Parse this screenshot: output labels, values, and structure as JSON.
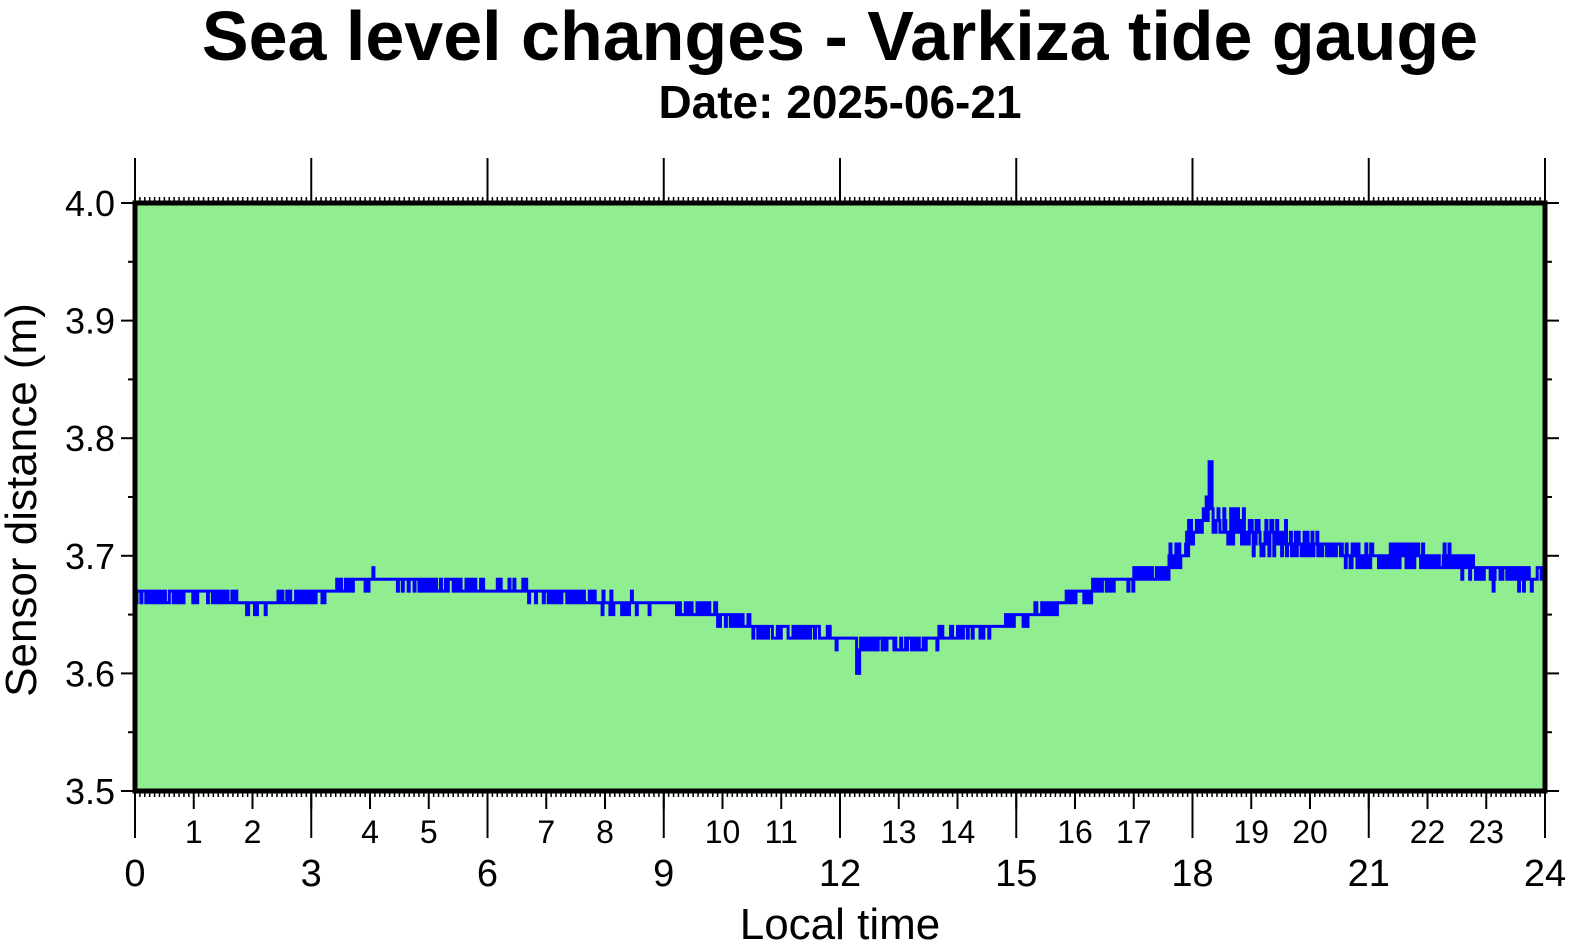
{
  "chart_data": {
    "type": "line",
    "title": "Sea level changes - Varkiza tide gauge",
    "subtitle": "Date: 2025-06-21",
    "xlabel": "Local time",
    "ylabel": "Sensor distance (m)",
    "xlim": [
      0,
      24
    ],
    "ylim": [
      3.5,
      4.0
    ],
    "x_major_ticks": [
      "0",
      "3",
      "6",
      "9",
      "12",
      "15",
      "18",
      "21",
      "24"
    ],
    "x_minor_ticks": [
      "1",
      "2",
      "4",
      "5",
      "7",
      "8",
      "10",
      "11",
      "13",
      "14",
      "16",
      "17",
      "19",
      "20",
      "22",
      "23"
    ],
    "y_ticks": [
      "3.5",
      "3.6",
      "3.7",
      "3.8",
      "3.9",
      "4.0"
    ],
    "grid": false,
    "colors": {
      "plot_background": "#90ee90",
      "line": "#0000ff",
      "frame": "#000000"
    },
    "series": [
      {
        "x": [
          0,
          0.5,
          1,
          1.5,
          2,
          2.5,
          3,
          3.5,
          4,
          4.5,
          5,
          5.5,
          6,
          6.5,
          7,
          7.5,
          8,
          8.5,
          9,
          9.5,
          10,
          10.5,
          11,
          11.5,
          12,
          12.5,
          13,
          13.5,
          14,
          14.5,
          15,
          15.5,
          16,
          16.5,
          17,
          17.5,
          18,
          18.25,
          18.5,
          19,
          19.5,
          20,
          20.5,
          21,
          21.5,
          22,
          22.5,
          23,
          23.5,
          24
        ],
        "y": [
          3.665,
          3.665,
          3.67,
          3.665,
          3.655,
          3.665,
          3.665,
          3.675,
          3.68,
          3.68,
          3.675,
          3.672,
          3.672,
          3.672,
          3.665,
          3.665,
          3.66,
          3.66,
          3.66,
          3.655,
          3.648,
          3.64,
          3.635,
          3.635,
          3.63,
          3.628,
          3.625,
          3.628,
          3.635,
          3.64,
          3.645,
          3.655,
          3.665,
          3.675,
          3.68,
          3.69,
          3.715,
          3.74,
          3.725,
          3.72,
          3.715,
          3.708,
          3.705,
          3.7,
          3.7,
          3.698,
          3.695,
          3.685,
          3.682,
          3.685
        ]
      }
    ]
  }
}
